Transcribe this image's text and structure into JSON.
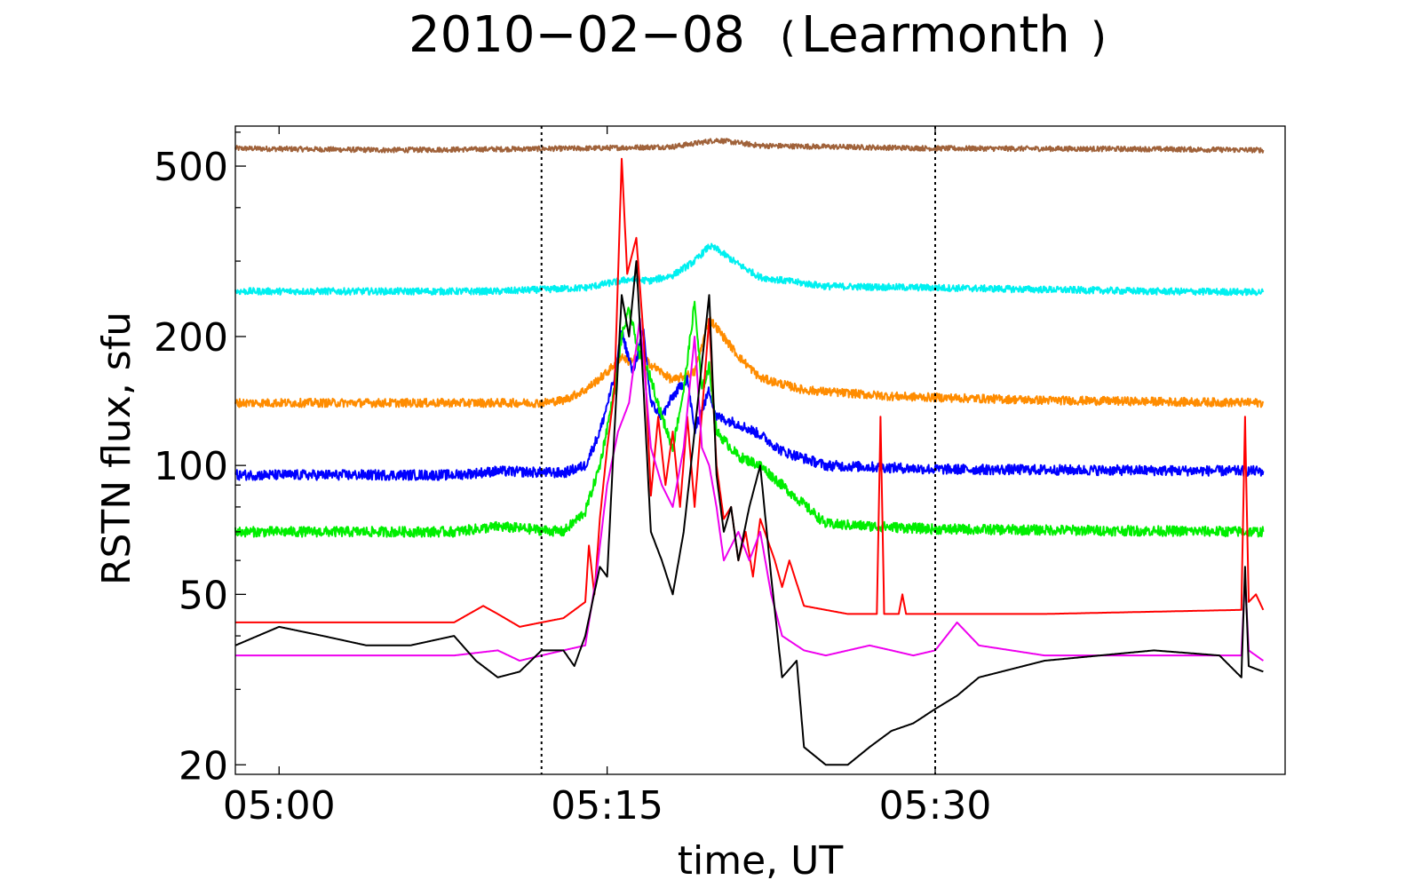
{
  "chart_data": {
    "type": "line",
    "title_date": "2010−02−08",
    "title_station": "Learmonth",
    "xlabel": "time, UT",
    "ylabel": "RSTN flux, sfu",
    "y_scale": "log",
    "xlim": [
      "04:58",
      "05:46"
    ],
    "ylim": [
      19,
      620
    ],
    "x_ticks": [
      {
        "t": "05:00",
        "label": "05:00"
      },
      {
        "t": "05:15",
        "label": "05:15"
      },
      {
        "t": "05:30",
        "label": "05:30"
      }
    ],
    "y_ticks": [
      {
        "v": 20,
        "label": "20"
      },
      {
        "v": 50,
        "label": "50"
      },
      {
        "v": 100,
        "label": "100"
      },
      {
        "v": 200,
        "label": "200"
      },
      {
        "v": 500,
        "label": "500"
      }
    ],
    "vertical_lines": [
      "05:12",
      "05:30"
    ],
    "grid": false,
    "legend": "none",
    "series": [
      {
        "color": "#a0623a",
        "noise": 0.006,
        "points": [
          [
            "04:58",
            550
          ],
          [
            "05:05",
            545
          ],
          [
            "05:14",
            550
          ],
          [
            "05:18",
            555
          ],
          [
            "05:20",
            575
          ],
          [
            "05:22",
            558
          ],
          [
            "05:30",
            550
          ],
          [
            "05:40",
            548
          ],
          [
            "05:45",
            545
          ]
        ]
      },
      {
        "color": "#00f0f0",
        "noise": 0.008,
        "points": [
          [
            "04:58",
            255
          ],
          [
            "05:10",
            255
          ],
          [
            "05:14",
            260
          ],
          [
            "05:16",
            272
          ],
          [
            "05:17",
            270
          ],
          [
            "05:18",
            278
          ],
          [
            "05:19",
            300
          ],
          [
            "05:19:40",
            325
          ],
          [
            "05:20",
            320
          ],
          [
            "05:21",
            295
          ],
          [
            "05:22",
            275
          ],
          [
            "05:25",
            262
          ],
          [
            "05:30",
            260
          ],
          [
            "05:40",
            255
          ],
          [
            "05:45",
            254
          ]
        ]
      },
      {
        "color": "#ff8c00",
        "noise": 0.01,
        "points": [
          [
            "04:58",
            140
          ],
          [
            "05:12",
            140
          ],
          [
            "05:13",
            142
          ],
          [
            "05:14",
            150
          ],
          [
            "05:15",
            165
          ],
          [
            "05:15:40",
            180
          ],
          [
            "05:16",
            175
          ],
          [
            "05:16:30",
            180
          ],
          [
            "05:17",
            172
          ],
          [
            "05:18",
            158
          ],
          [
            "05:19",
            165
          ],
          [
            "05:19:40",
            220
          ],
          [
            "05:20",
            210
          ],
          [
            "05:21",
            180
          ],
          [
            "05:22",
            160
          ],
          [
            "05:24",
            150
          ],
          [
            "05:28",
            145
          ],
          [
            "05:35",
            142
          ],
          [
            "05:45",
            140
          ]
        ]
      },
      {
        "color": "#0000ff",
        "noise": 0.012,
        "points": [
          [
            "04:58",
            95
          ],
          [
            "05:08",
            95
          ],
          [
            "05:10",
            97
          ],
          [
            "05:13",
            96
          ],
          [
            "05:14",
            100
          ],
          [
            "05:14:40",
            120
          ],
          [
            "05:15:20",
            160
          ],
          [
            "05:15:40",
            205
          ],
          [
            "05:16:10",
            165
          ],
          [
            "05:16:40",
            205
          ],
          [
            "05:17",
            140
          ],
          [
            "05:17:30",
            130
          ],
          [
            "05:18",
            145
          ],
          [
            "05:18:40",
            160
          ],
          [
            "05:19",
            120
          ],
          [
            "05:19:40",
            150
          ],
          [
            "05:20",
            130
          ],
          [
            "05:21",
            125
          ],
          [
            "05:22",
            118
          ],
          [
            "05:23",
            108
          ],
          [
            "05:25",
            100
          ],
          [
            "05:30",
            98
          ],
          [
            "05:45",
            97
          ]
        ]
      },
      {
        "color": "#00ee00",
        "noise": 0.012,
        "points": [
          [
            "04:58",
            70
          ],
          [
            "05:08",
            70
          ],
          [
            "05:10",
            72
          ],
          [
            "05:13",
            70
          ],
          [
            "05:14",
            78
          ],
          [
            "05:14:40",
            100
          ],
          [
            "05:15:20",
            150
          ],
          [
            "05:15:40",
            200
          ],
          [
            "05:16",
            230
          ],
          [
            "05:16:30",
            180
          ],
          [
            "05:17",
            160
          ],
          [
            "05:17:30",
            130
          ],
          [
            "05:18",
            110
          ],
          [
            "05:18:30",
            150
          ],
          [
            "05:19",
            240
          ],
          [
            "05:19:20",
            150
          ],
          [
            "05:19:40",
            170
          ],
          [
            "05:20",
            120
          ],
          [
            "05:21",
            105
          ],
          [
            "05:22",
            100
          ],
          [
            "05:23",
            90
          ],
          [
            "05:25",
            73
          ],
          [
            "05:30",
            71
          ],
          [
            "05:45",
            70
          ]
        ]
      },
      {
        "color": "#ff0000",
        "noise": 0,
        "points": [
          [
            "04:58",
            43
          ],
          [
            "05:08",
            43
          ],
          [
            "05:09:20",
            47
          ],
          [
            "05:10",
            45
          ],
          [
            "05:11",
            42
          ],
          [
            "05:12",
            43
          ],
          [
            "05:13",
            44
          ],
          [
            "05:14",
            48
          ],
          [
            "05:14:10",
            65
          ],
          [
            "05:14:25",
            50
          ],
          [
            "05:14:40",
            75
          ],
          [
            "05:15",
            110
          ],
          [
            "05:15:20",
            150
          ],
          [
            "05:15:40",
            520
          ],
          [
            "05:15:55",
            280
          ],
          [
            "05:16:20",
            340
          ],
          [
            "05:16:40",
            200
          ],
          [
            "05:17",
            85
          ],
          [
            "05:17:20",
            130
          ],
          [
            "05:17:40",
            90
          ],
          [
            "05:18",
            120
          ],
          [
            "05:18:20",
            80
          ],
          [
            "05:18:40",
            130
          ],
          [
            "05:19",
            80
          ],
          [
            "05:19:40",
            220
          ],
          [
            "05:20",
            100
          ],
          [
            "05:20:20",
            75
          ],
          [
            "05:20:40",
            80
          ],
          [
            "05:21",
            60
          ],
          [
            "05:21:20",
            70
          ],
          [
            "05:21:40",
            55
          ],
          [
            "05:22",
            75
          ],
          [
            "05:22:40",
            60
          ],
          [
            "05:23",
            52
          ],
          [
            "05:23:20",
            60
          ],
          [
            "05:24",
            47
          ],
          [
            "05:26",
            45
          ],
          [
            "05:27:20",
            45
          ],
          [
            "05:27:30",
            130
          ],
          [
            "05:27:40",
            45
          ],
          [
            "05:28:20",
            45
          ],
          [
            "05:28:30",
            50
          ],
          [
            "05:28:40",
            45
          ],
          [
            "05:30",
            45
          ],
          [
            "05:35",
            45
          ],
          [
            "05:44",
            46
          ],
          [
            "05:44:10",
            130
          ],
          [
            "05:44:20",
            48
          ],
          [
            "05:44:40",
            50
          ],
          [
            "05:45",
            46
          ]
        ]
      },
      {
        "color": "#ee00ee",
        "noise": 0,
        "points": [
          [
            "04:58",
            36
          ],
          [
            "05:08",
            36
          ],
          [
            "05:10",
            37
          ],
          [
            "05:11",
            35
          ],
          [
            "05:12",
            36
          ],
          [
            "05:13",
            37
          ],
          [
            "05:14",
            38
          ],
          [
            "05:14:30",
            55
          ],
          [
            "05:15",
            90
          ],
          [
            "05:15:30",
            120
          ],
          [
            "05:16",
            140
          ],
          [
            "05:16:30",
            220
          ],
          [
            "05:17",
            110
          ],
          [
            "05:17:30",
            90
          ],
          [
            "05:18",
            80
          ],
          [
            "05:18:30",
            110
          ],
          [
            "05:19",
            200
          ],
          [
            "05:19:20",
            110
          ],
          [
            "05:19:40",
            100
          ],
          [
            "05:20",
            80
          ],
          [
            "05:20:20",
            60
          ],
          [
            "05:21",
            70
          ],
          [
            "05:21:30",
            60
          ],
          [
            "05:22",
            70
          ],
          [
            "05:22:30",
            50
          ],
          [
            "05:23",
            40
          ],
          [
            "05:24",
            37
          ],
          [
            "05:25",
            36
          ],
          [
            "05:27",
            38
          ],
          [
            "05:28",
            37
          ],
          [
            "05:29",
            36
          ],
          [
            "05:30",
            37
          ],
          [
            "05:31",
            43
          ],
          [
            "05:32",
            38
          ],
          [
            "05:35",
            36
          ],
          [
            "05:44",
            36
          ],
          [
            "05:44:10",
            55
          ],
          [
            "05:44:20",
            37
          ],
          [
            "05:45",
            35
          ]
        ]
      },
      {
        "color": "#000000",
        "noise": 0,
        "points": [
          [
            "04:58",
            38
          ],
          [
            "05:00",
            42
          ],
          [
            "05:02",
            40
          ],
          [
            "05:04",
            38
          ],
          [
            "05:06",
            38
          ],
          [
            "05:08",
            40
          ],
          [
            "05:09",
            35
          ],
          [
            "05:10",
            32
          ],
          [
            "05:11",
            33
          ],
          [
            "05:12",
            37
          ],
          [
            "05:13",
            37
          ],
          [
            "05:13:30",
            34
          ],
          [
            "05:14",
            40
          ],
          [
            "05:14:40",
            58
          ],
          [
            "05:15",
            55
          ],
          [
            "05:15:20",
            120
          ],
          [
            "05:15:40",
            250
          ],
          [
            "05:16",
            200
          ],
          [
            "05:16:20",
            300
          ],
          [
            "05:16:40",
            150
          ],
          [
            "05:17",
            70
          ],
          [
            "05:17:30",
            60
          ],
          [
            "05:18",
            50
          ],
          [
            "05:18:30",
            70
          ],
          [
            "05:19",
            120
          ],
          [
            "05:19:40",
            250
          ],
          [
            "05:20",
            95
          ],
          [
            "05:20:20",
            70
          ],
          [
            "05:20:40",
            80
          ],
          [
            "05:21",
            60
          ],
          [
            "05:21:30",
            80
          ],
          [
            "05:22",
            100
          ],
          [
            "05:22:30",
            55
          ],
          [
            "05:23",
            32
          ],
          [
            "05:23:40",
            35
          ],
          [
            "05:24",
            22
          ],
          [
            "05:25",
            20
          ],
          [
            "05:26",
            20
          ],
          [
            "05:27",
            22
          ],
          [
            "05:28",
            24
          ],
          [
            "05:29",
            25
          ],
          [
            "05:30",
            27
          ],
          [
            "05:31",
            29
          ],
          [
            "05:32",
            32
          ],
          [
            "05:35",
            35
          ],
          [
            "05:40",
            37
          ],
          [
            "05:43",
            36
          ],
          [
            "05:44",
            32
          ],
          [
            "05:44:10",
            58
          ],
          [
            "05:44:20",
            34
          ],
          [
            "05:45",
            33
          ]
        ]
      }
    ]
  }
}
